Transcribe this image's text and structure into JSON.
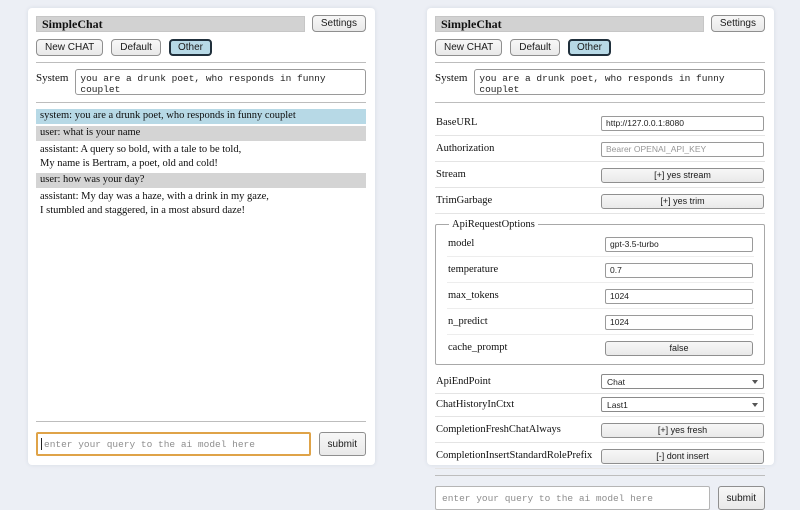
{
  "colors": {
    "page_background": "#eceff5",
    "titlebar_bg": "#d2d2d2",
    "selected_session_bg": "#b7d9e6",
    "system_message_bg": "#b7d9e6",
    "user_message_bg": "#d4d4d4",
    "focused_input_border": "#dfa348"
  },
  "header": {
    "title": "SimpleChat",
    "settings_button": "Settings",
    "sessions": [
      {
        "label": "New CHAT",
        "active": false
      },
      {
        "label": "Default",
        "active": false
      },
      {
        "label": "Other",
        "active": true
      }
    ]
  },
  "system": {
    "label": "System",
    "value": "you are a drunk poet, who responds in funny couplet"
  },
  "chat": {
    "messages": [
      {
        "role": "system",
        "text": "system: you are a drunk poet, who responds in funny couplet"
      },
      {
        "role": "user",
        "text": "user: what is your name"
      },
      {
        "role": "assistant",
        "text": "assistant: A query so bold, with a tale to be told,\nMy name is Bertram, a poet, old and cold!"
      },
      {
        "role": "user",
        "text": "user: how was your day?"
      },
      {
        "role": "assistant",
        "text": "assistant: My day was a haze, with a drink in my gaze,\nI stumbled and staggered, in a most absurd daze!"
      }
    ]
  },
  "settings": {
    "baseurl": {
      "label": "BaseURL",
      "value": "http://127.0.0.1:8080"
    },
    "authorization": {
      "label": "Authorization",
      "placeholder": "Bearer OPENAI_API_KEY"
    },
    "stream": {
      "label": "Stream",
      "button": "[+] yes stream"
    },
    "trim_garbage": {
      "label": "TrimGarbage",
      "button": "[+] yes trim"
    },
    "api_request_options": {
      "legend": "ApiRequestOptions",
      "model": {
        "label": "model",
        "value": "gpt-3.5-turbo"
      },
      "temperature": {
        "label": "temperature",
        "value": "0.7"
      },
      "max_tokens": {
        "label": "max_tokens",
        "value": "1024"
      },
      "n_predict": {
        "label": "n_predict",
        "value": "1024"
      },
      "cache_prompt": {
        "label": "cache_prompt",
        "button": "false"
      }
    },
    "api_endpoint": {
      "label": "ApiEndPoint",
      "value": "Chat"
    },
    "chat_history_in_ctxt": {
      "label": "ChatHistoryInCtxt",
      "value": "Last1"
    },
    "completion_fresh_chat_always": {
      "label": "CompletionFreshChatAlways",
      "button": "[+] yes fresh"
    },
    "completion_insert_standard_role_prefix": {
      "label": "CompletionInsertStandardRolePrefix",
      "button": "[-] dont insert"
    }
  },
  "footer": {
    "query_placeholder": "enter your query to the ai model here",
    "submit_label": "submit"
  }
}
